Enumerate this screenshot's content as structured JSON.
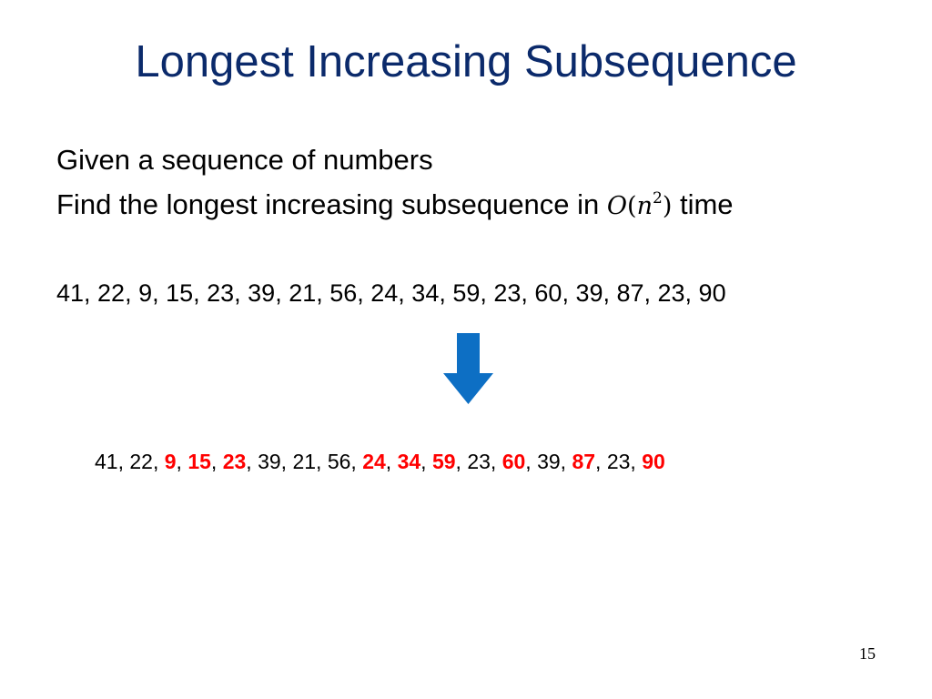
{
  "slide": {
    "title": "Longest Increasing Subsequence",
    "line1": "Given a sequence of numbers",
    "line2_prefix": "Find the longest increasing subsequence in ",
    "complexity": {
      "big_o": "O",
      "open_paren": "(",
      "var": "n",
      "exponent": "2",
      "close_paren": ")"
    },
    "line2_suffix": " time",
    "sequence_text": "41, 22, 9, 15, 23, 39, 21, 56, 24, 34, 59, 23, 60, 39, 87, 23, 90",
    "result": {
      "items": [
        {
          "value": "41",
          "highlight": false
        },
        {
          "value": "22",
          "highlight": false
        },
        {
          "value": "9",
          "highlight": true
        },
        {
          "value": "15",
          "highlight": true
        },
        {
          "value": "23",
          "highlight": true
        },
        {
          "value": "39",
          "highlight": false
        },
        {
          "value": "21",
          "highlight": false
        },
        {
          "value": "56",
          "highlight": false
        },
        {
          "value": "24",
          "highlight": true
        },
        {
          "value": "34",
          "highlight": true
        },
        {
          "value": "59",
          "highlight": true
        },
        {
          "value": "23",
          "highlight": false
        },
        {
          "value": "60",
          "highlight": true
        },
        {
          "value": "39",
          "highlight": false
        },
        {
          "value": "87",
          "highlight": true
        },
        {
          "value": "23",
          "highlight": false
        },
        {
          "value": "90",
          "highlight": true
        }
      ],
      "separator": ", "
    },
    "arrow_icon": "down-arrow-icon",
    "page_number": "15"
  },
  "colors": {
    "title": "#0b2a6b",
    "arrow": "#0d6fc4",
    "highlight": "#ff0000"
  }
}
